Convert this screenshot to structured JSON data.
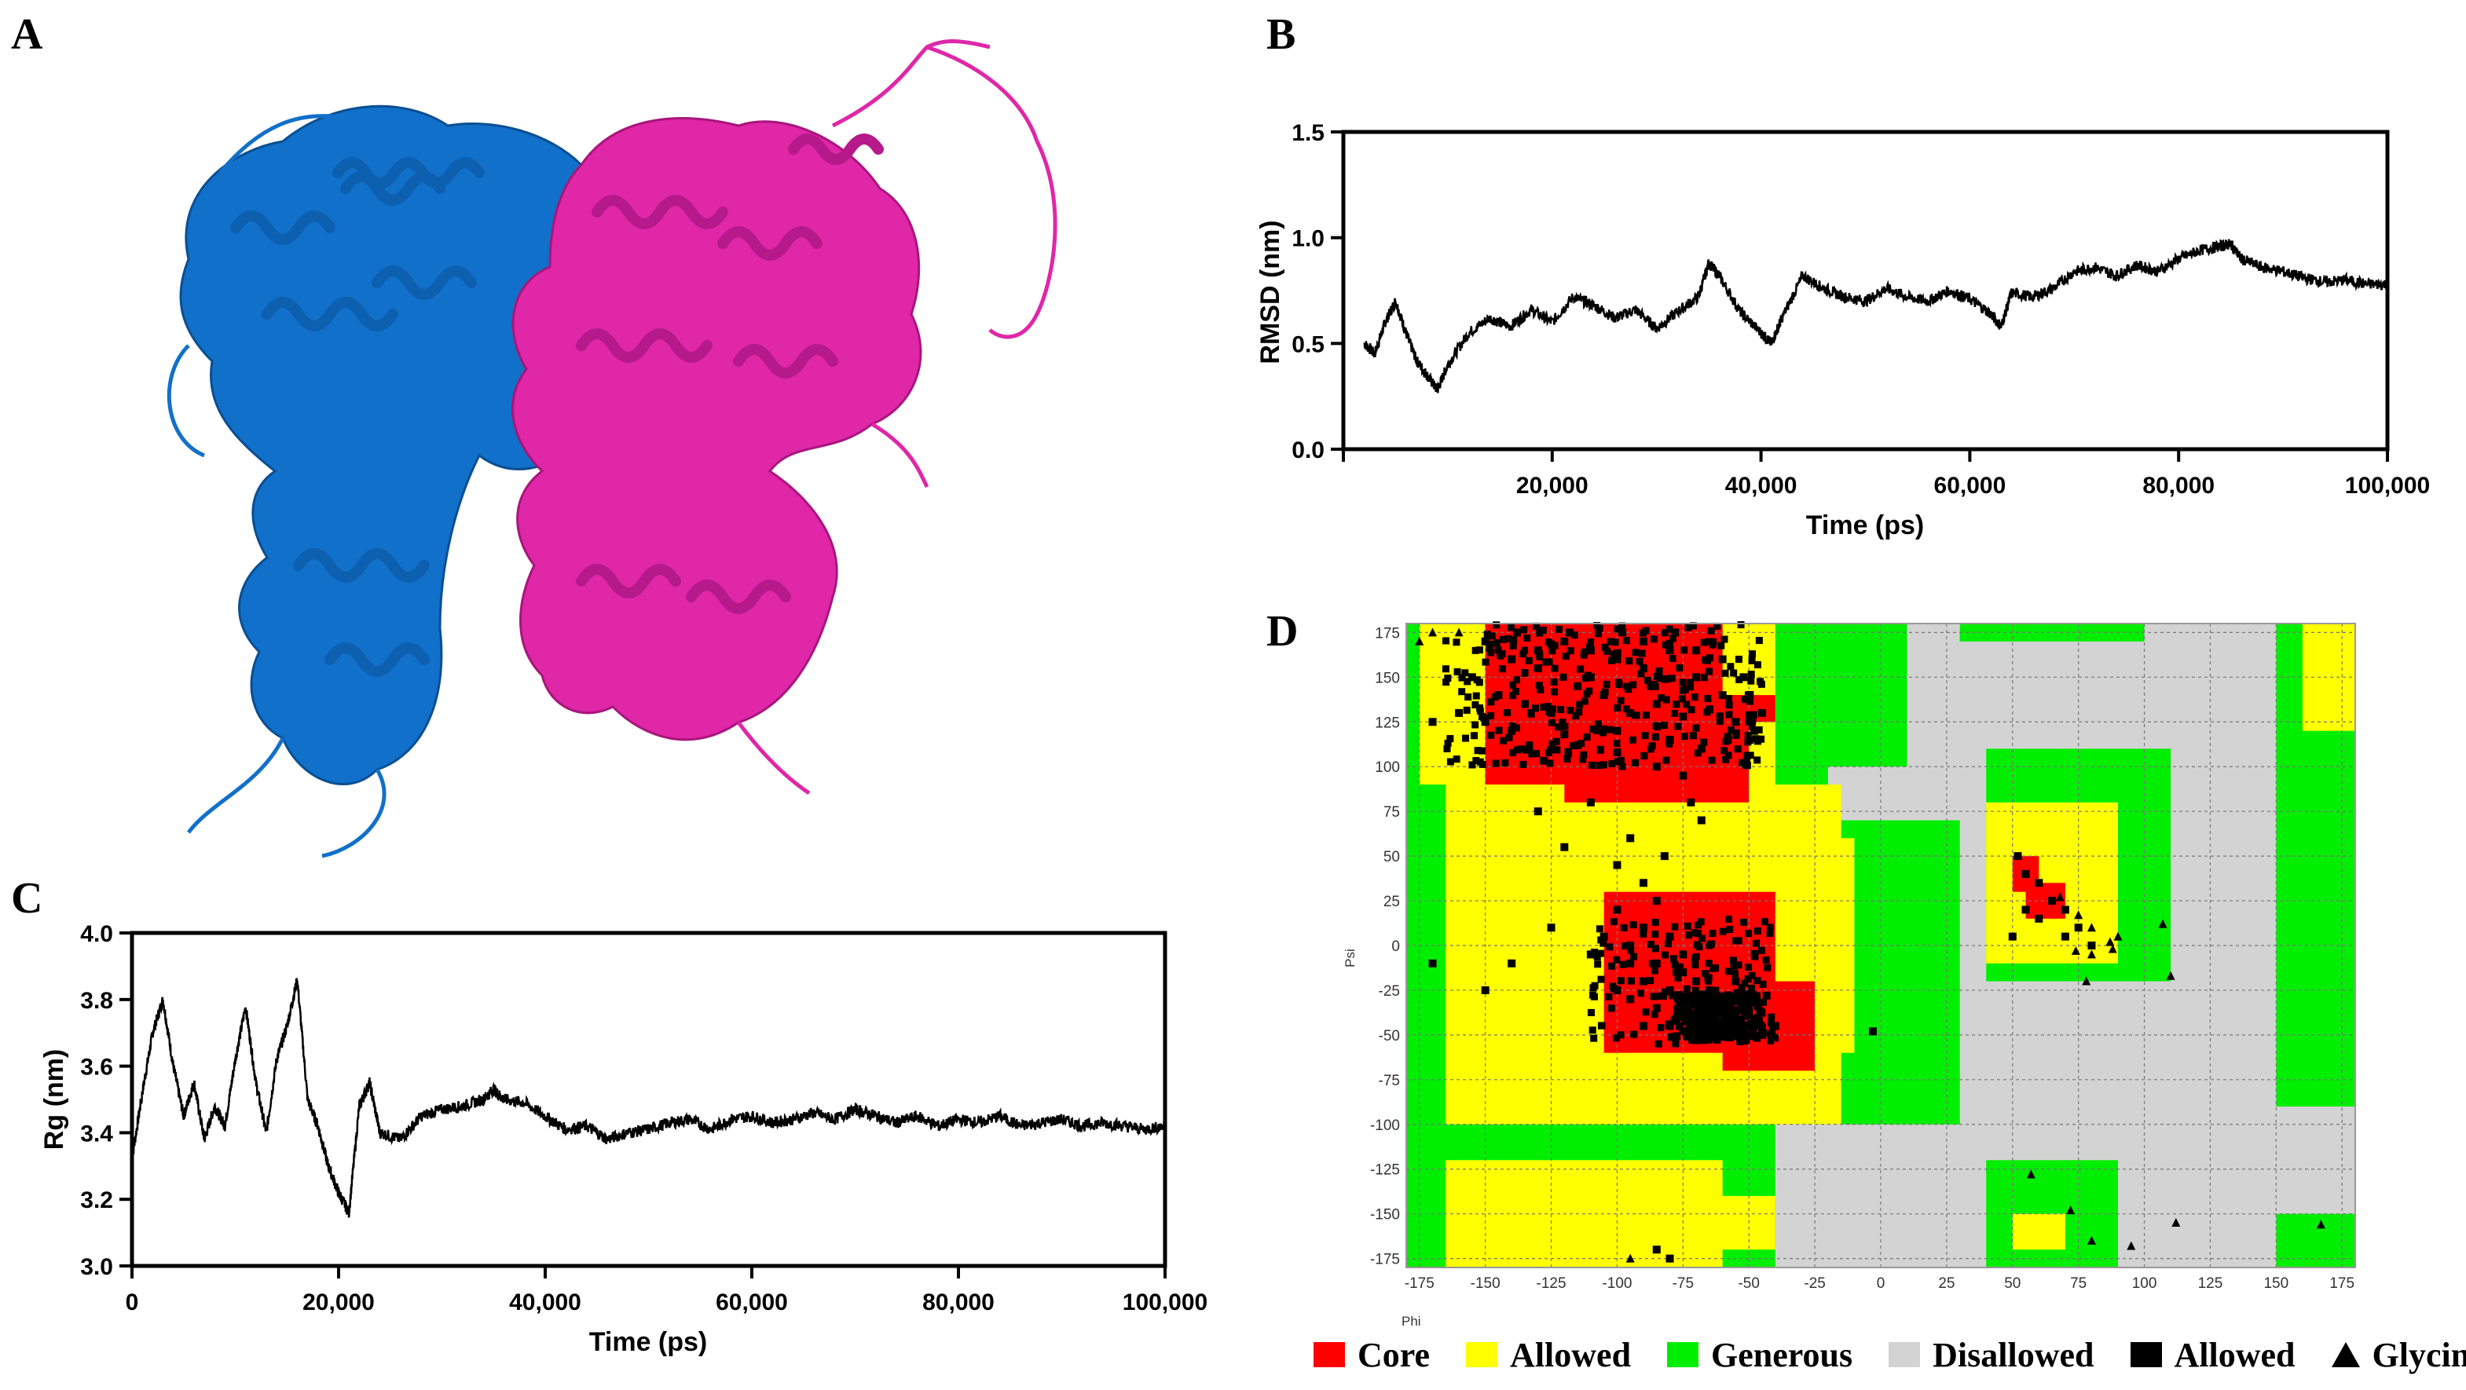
{
  "panels": {
    "a": "A",
    "b": "B",
    "c": "C",
    "d": "D"
  },
  "colors": {
    "chainA": "#1170c9",
    "chainB": "#df27a8",
    "core": "#ff0000",
    "allowed": "#ffff00",
    "generous": "#00ee00",
    "disallowed": "#d3d3d3"
  },
  "protein": {
    "chain_a": "chain A",
    "chain_b": "chain B"
  },
  "chart_data": [
    {
      "id": "rmsd",
      "type": "line",
      "xlabel": "Time (ps)",
      "ylabel": "RMSD (nm)",
      "xlim": [
        0,
        100000
      ],
      "ylim": [
        0,
        1.5
      ],
      "xticks": [
        0,
        20000,
        40000,
        60000,
        80000,
        100000
      ],
      "xtick_labels": [
        "",
        "20,000",
        "40,000",
        "60,000",
        "80,000",
        "100,000"
      ],
      "yticks": [
        0,
        0.5,
        1.0,
        1.5
      ],
      "ytick_labels": [
        "0.0",
        "0.5",
        "1.0",
        "1.5"
      ],
      "x": [
        2000,
        3000,
        4000,
        5000,
        6000,
        7000,
        8000,
        9000,
        10000,
        12000,
        14000,
        16000,
        18000,
        20000,
        22000,
        24000,
        26000,
        28000,
        30000,
        32000,
        34000,
        35000,
        36000,
        38000,
        40000,
        41000,
        42000,
        44000,
        46000,
        48000,
        50000,
        52000,
        54000,
        56000,
        58000,
        60000,
        62000,
        63000,
        64000,
        66000,
        68000,
        70000,
        72000,
        74000,
        76000,
        78000,
        80000,
        82000,
        84000,
        85000,
        86000,
        88000,
        90000,
        92000,
        94000,
        96000,
        98000,
        100000
      ],
      "y": [
        0.5,
        0.45,
        0.6,
        0.7,
        0.55,
        0.42,
        0.35,
        0.28,
        0.4,
        0.55,
        0.62,
        0.58,
        0.66,
        0.6,
        0.72,
        0.68,
        0.62,
        0.66,
        0.57,
        0.65,
        0.72,
        0.88,
        0.82,
        0.65,
        0.55,
        0.5,
        0.62,
        0.82,
        0.76,
        0.72,
        0.7,
        0.76,
        0.72,
        0.7,
        0.75,
        0.71,
        0.64,
        0.58,
        0.74,
        0.72,
        0.76,
        0.84,
        0.86,
        0.82,
        0.87,
        0.84,
        0.9,
        0.94,
        0.96,
        0.97,
        0.9,
        0.86,
        0.84,
        0.81,
        0.79,
        0.8,
        0.78,
        0.78
      ]
    },
    {
      "id": "rg",
      "type": "line",
      "xlabel": "Time (ps)",
      "ylabel": "Rg (nm)",
      "xlim": [
        0,
        100000
      ],
      "ylim": [
        3.0,
        4.0
      ],
      "xticks": [
        0,
        20000,
        40000,
        60000,
        80000,
        100000
      ],
      "xtick_labels": [
        "0",
        "20,000",
        "40,000",
        "60,000",
        "80,000",
        "100,000"
      ],
      "yticks": [
        3.0,
        3.2,
        3.4,
        3.6,
        3.8,
        4.0
      ],
      "ytick_labels": [
        "3.0",
        "3.2",
        "3.4",
        "3.6",
        "3.8",
        "4.0"
      ],
      "x": [
        0,
        1000,
        2000,
        3000,
        4000,
        5000,
        6000,
        7000,
        8000,
        9000,
        10000,
        11000,
        12000,
        13000,
        14000,
        15000,
        16000,
        17000,
        18000,
        19000,
        20000,
        21000,
        22000,
        23000,
        24000,
        26000,
        28000,
        30000,
        32000,
        34000,
        35000,
        36000,
        38000,
        40000,
        42000,
        44000,
        46000,
        48000,
        50000,
        52000,
        54000,
        56000,
        58000,
        60000,
        62000,
        64000,
        66000,
        68000,
        70000,
        72000,
        74000,
        76000,
        78000,
        80000,
        82000,
        84000,
        86000,
        88000,
        90000,
        92000,
        94000,
        96000,
        98000,
        100000
      ],
      "y": [
        3.32,
        3.52,
        3.7,
        3.8,
        3.6,
        3.45,
        3.55,
        3.38,
        3.48,
        3.42,
        3.62,
        3.78,
        3.55,
        3.4,
        3.62,
        3.72,
        3.86,
        3.5,
        3.42,
        3.3,
        3.22,
        3.16,
        3.48,
        3.55,
        3.4,
        3.38,
        3.45,
        3.47,
        3.48,
        3.5,
        3.53,
        3.5,
        3.49,
        3.45,
        3.41,
        3.42,
        3.38,
        3.4,
        3.41,
        3.43,
        3.44,
        3.41,
        3.44,
        3.45,
        3.43,
        3.44,
        3.46,
        3.44,
        3.47,
        3.45,
        3.43,
        3.45,
        3.42,
        3.44,
        3.43,
        3.45,
        3.42,
        3.43,
        3.44,
        3.42,
        3.43,
        3.42,
        3.41,
        3.42
      ]
    },
    {
      "id": "ramachandran",
      "type": "scatter",
      "xlabel": "Phi",
      "ylabel": "Psi",
      "xlim": [
        -180,
        180
      ],
      "ylim": [
        -180,
        180
      ],
      "xticks": [
        -175,
        -150,
        -125,
        -100,
        -75,
        -50,
        -25,
        0,
        25,
        50,
        75,
        100,
        125,
        150,
        175
      ],
      "yticks": [
        175,
        150,
        125,
        100,
        75,
        50,
        25,
        0,
        -25,
        -50,
        -75,
        -100,
        -125,
        -150,
        -175
      ],
      "legend": [
        {
          "label": "Core",
          "marker": "red-square"
        },
        {
          "label": "Allowed",
          "marker": "yellow-square"
        },
        {
          "label": "Generous",
          "marker": "green-square"
        },
        {
          "label": "Disallowed",
          "marker": "gray-square"
        },
        {
          "label": "Allowed",
          "marker": "black-square"
        },
        {
          "label": "Glycine",
          "marker": "black-triangle"
        }
      ],
      "residues": [
        [
          -150,
          170
        ],
        [
          -140,
          160
        ],
        [
          -130,
          165
        ],
        [
          -120,
          170
        ],
        [
          -110,
          150
        ],
        [
          -100,
          160
        ],
        [
          -90,
          155
        ],
        [
          -80,
          165
        ],
        [
          -70,
          150
        ],
        [
          -60,
          140
        ],
        [
          -145,
          140
        ],
        [
          -135,
          135
        ],
        [
          -125,
          130
        ],
        [
          -115,
          145
        ],
        [
          -105,
          140
        ],
        [
          -95,
          130
        ],
        [
          -85,
          135
        ],
        [
          -75,
          128
        ],
        [
          -65,
          132
        ],
        [
          -55,
          125
        ],
        [
          -50,
          140
        ],
        [
          -45,
          130
        ],
        [
          -140,
          120
        ],
        [
          -120,
          118
        ],
        [
          -100,
          120
        ],
        [
          -80,
          115
        ],
        [
          -130,
          155
        ],
        [
          -110,
          165
        ],
        [
          -90,
          170
        ],
        [
          -70,
          165
        ],
        [
          -155,
          150
        ],
        [
          -150,
          125
        ],
        [
          -160,
          130
        ],
        [
          -138,
          175
        ],
        [
          -118,
          175
        ],
        [
          -98,
          175
        ],
        [
          -78,
          175
        ],
        [
          -60,
          160
        ],
        [
          -52,
          150
        ],
        [
          -48,
          120
        ],
        [
          -58,
          115
        ],
        [
          -68,
          110
        ],
        [
          -85,
          100
        ],
        [
          -100,
          108
        ],
        [
          -115,
          112
        ],
        [
          -75,
          95
        ],
        [
          -72,
          80
        ],
        [
          -68,
          70
        ],
        [
          -110,
          80
        ],
        [
          -130,
          75
        ],
        [
          -95,
          60
        ],
        [
          -82,
          50
        ],
        [
          -120,
          55
        ],
        [
          -100,
          45
        ],
        [
          -90,
          35
        ],
        [
          -85,
          25
        ],
        [
          -100,
          20
        ],
        [
          -90,
          10
        ],
        [
          -80,
          5
        ],
        [
          -95,
          0
        ],
        [
          -85,
          -10
        ],
        [
          -75,
          -15
        ],
        [
          -70,
          -20
        ],
        [
          -90,
          -20
        ],
        [
          -80,
          -25
        ],
        [
          -70,
          -30
        ],
        [
          -60,
          -30
        ],
        [
          -65,
          -40
        ],
        [
          -55,
          -40
        ],
        [
          -75,
          -40
        ],
        [
          -85,
          -35
        ],
        [
          -95,
          -30
        ],
        [
          -60,
          -50
        ],
        [
          -50,
          -45
        ],
        [
          -70,
          -50
        ],
        [
          -80,
          -45
        ],
        [
          -65,
          -25
        ],
        [
          -55,
          -20
        ],
        [
          -75,
          -5
        ],
        [
          -95,
          -10
        ],
        [
          -100,
          -25
        ],
        [
          -90,
          -45
        ],
        [
          -45,
          -50
        ],
        [
          -40,
          -45
        ],
        [
          -110,
          -5
        ],
        [
          -105,
          5
        ],
        [
          -50,
          -35
        ],
        [
          -62,
          -38
        ],
        [
          -58,
          -42
        ],
        [
          -66,
          -34
        ],
        [
          -63,
          -46
        ],
        [
          -57,
          -36
        ],
        [
          -70,
          -45
        ],
        [
          -3,
          -48
        ],
        [
          -125,
          10
        ],
        [
          -140,
          -10
        ],
        [
          -150,
          -25
        ],
        [
          -170,
          -10
        ],
        [
          -170,
          125
        ],
        [
          52,
          50
        ],
        [
          55,
          40
        ],
        [
          60,
          35
        ],
        [
          65,
          25
        ],
        [
          55,
          20
        ],
        [
          60,
          15
        ],
        [
          70,
          20
        ],
        [
          75,
          10
        ],
        [
          70,
          5
        ],
        [
          80,
          0
        ],
        [
          50,
          5
        ],
        [
          -85,
          -170
        ],
        [
          -80,
          -175
        ]
      ],
      "glycines": [
        [
          -175,
          170
        ],
        [
          -160,
          175
        ],
        [
          -95,
          -175
        ],
        [
          57,
          -128
        ],
        [
          72,
          -148
        ],
        [
          80,
          -165
        ],
        [
          95,
          -168
        ],
        [
          112,
          -155
        ],
        [
          167,
          -156
        ],
        [
          68,
          27
        ],
        [
          75,
          17
        ],
        [
          80,
          10
        ],
        [
          87,
          2
        ],
        [
          90,
          5
        ],
        [
          80,
          -5
        ],
        [
          88,
          -2
        ],
        [
          78,
          -20
        ],
        [
          110,
          -17
        ],
        [
          107,
          12
        ],
        [
          74,
          -3
        ],
        [
          -170,
          175
        ]
      ]
    }
  ]
}
